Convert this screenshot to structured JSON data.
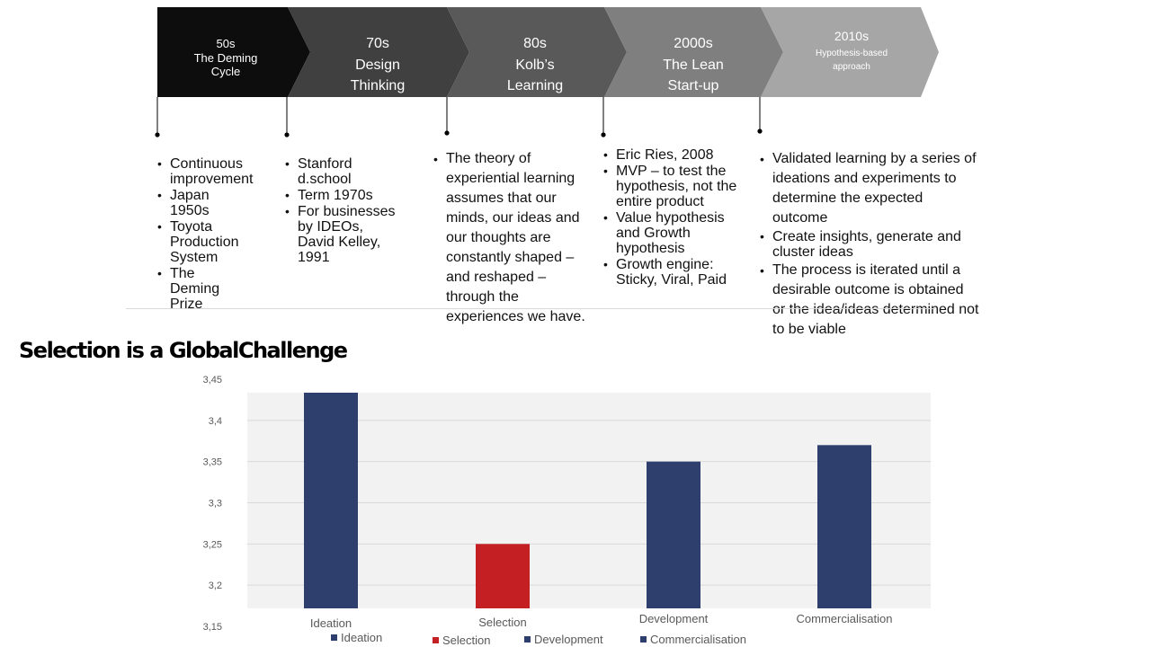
{
  "timeline": {
    "stages": [
      {
        "decade": "50s",
        "lines": [
          "The Deming",
          "Cycle"
        ],
        "fill": "#0d0d0d"
      },
      {
        "decade": "70s",
        "lines": [
          "Design",
          "Thinking"
        ],
        "fill": "#404040"
      },
      {
        "decade": "80s",
        "lines": [
          "Kolb’s",
          "Learning"
        ],
        "fill": "#595959"
      },
      {
        "decade": "2000s",
        "lines": [
          "The Lean",
          "Start-up"
        ],
        "fill": "#7f7f7f"
      },
      {
        "decade": "2010s",
        "lines": [
          "Hypothesis-based",
          "approach"
        ],
        "fill": "#a6a6a6"
      }
    ],
    "details": [
      [
        "Continuous improvement",
        "Japan 1950s",
        "Toyota Production System",
        "The Deming Prize"
      ],
      [
        "Stanford d.school",
        "Term 1970s",
        "For businesses by IDEOs, David Kelley, 1991"
      ],
      [
        "The theory of experiential learning assumes that our minds, our ideas and our thoughts are constantly shaped – and reshaped – through the experiences we have."
      ],
      [
        "Eric Ries, 2008",
        "MVP – to test the hypothesis, not the entire product",
        "Value hypothesis and Growth hypothesis",
        "Growth engine: Sticky, Viral, Paid"
      ],
      [
        "Validated learning by a series of ideations and experiments to determine the expected outcome",
        "Create insights, generate and cluster ideas",
        "The process is iterated until a desirable outcome is obtained or the idea/ideas determined not to be viable"
      ]
    ]
  },
  "slide": {
    "title": "Selection is a GlobalChallenge"
  },
  "chart_data": {
    "type": "bar",
    "categories": [
      "Ideation",
      "Selection",
      "Development",
      "Commercialisation"
    ],
    "values": [
      3.44,
      3.25,
      3.35,
      3.37
    ],
    "colors": [
      "#2e3f6e",
      "#c42024",
      "#2e3f6e",
      "#2e3f6e"
    ],
    "ylim": [
      3.15,
      3.45
    ],
    "yticks": [
      "3,15",
      "3,2",
      "3,25",
      "3,3",
      "3,35",
      "3,4",
      "3,45"
    ],
    "grid": true,
    "legend": {
      "position": "bottom",
      "entries": [
        {
          "label": "Ideation",
          "color": "#2e3f6e"
        },
        {
          "label": "Selection",
          "color": "#c42024"
        },
        {
          "label": "Development",
          "color": "#2e3f6e"
        },
        {
          "label": "Commercialisation",
          "color": "#2e3f6e"
        }
      ]
    }
  }
}
